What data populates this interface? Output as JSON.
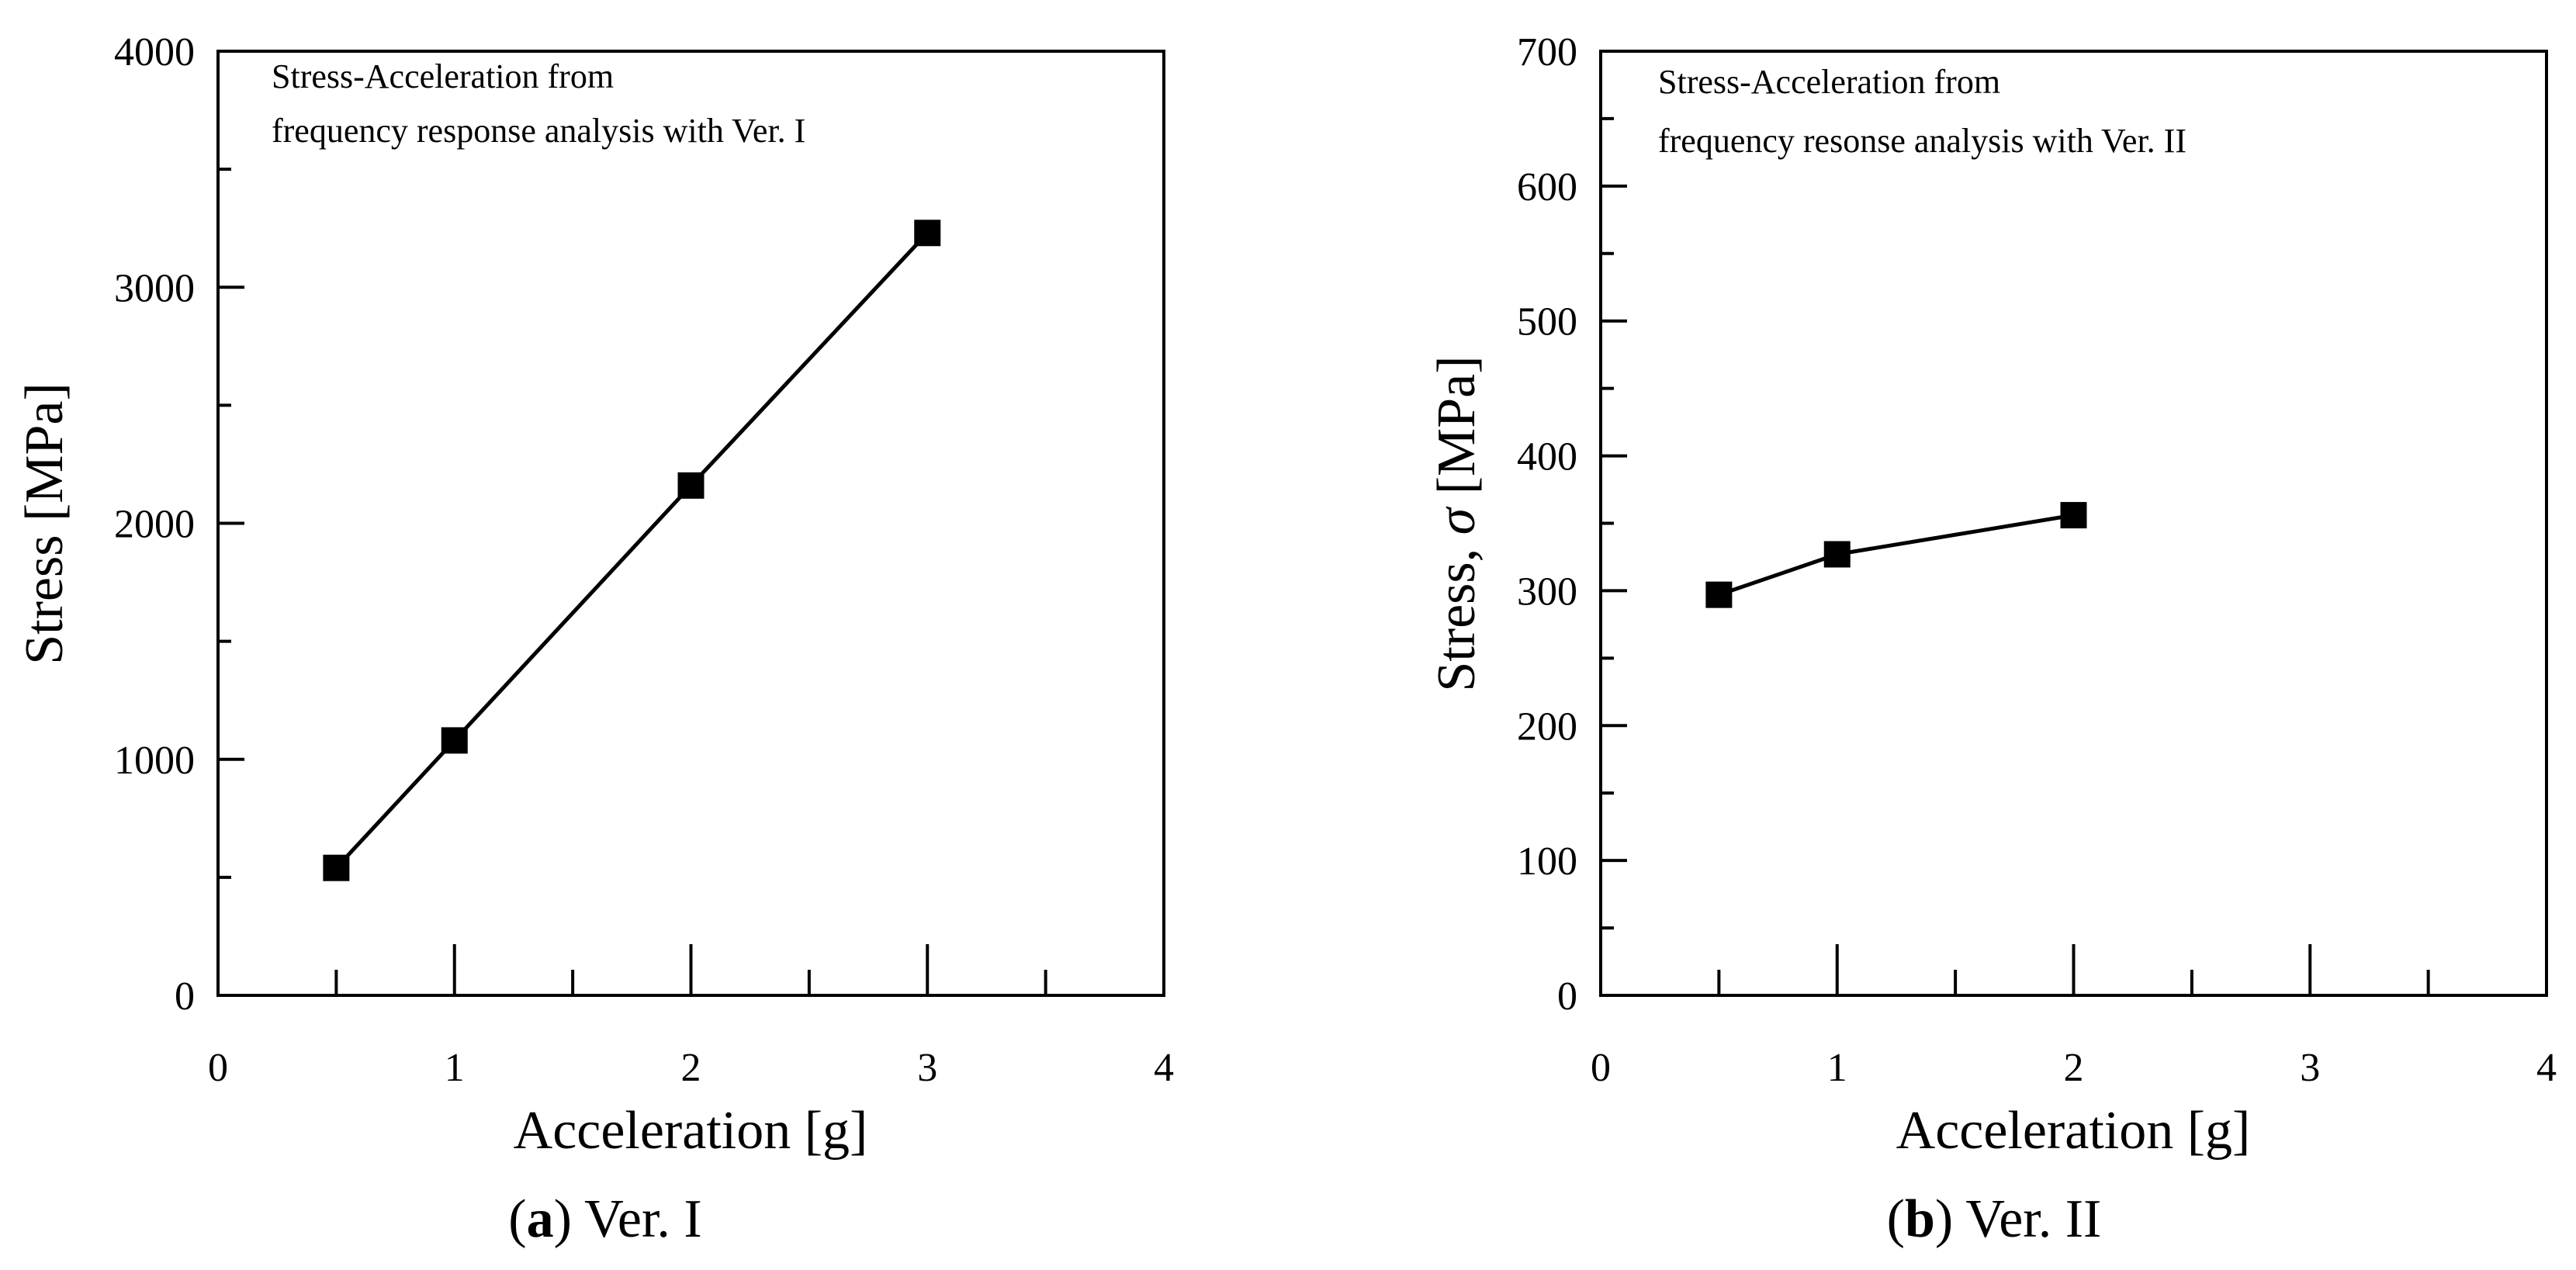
{
  "chart_data": [
    {
      "type": "line",
      "panel": "a",
      "caption_letter": "a",
      "caption_text": " Ver. I",
      "x": [
        0.5,
        1,
        2,
        3
      ],
      "series": [
        {
          "name": "Stress",
          "values": [
            540,
            1080,
            2160,
            3230
          ]
        }
      ],
      "xlim": [
        0,
        4
      ],
      "ylim": [
        0,
        4000
      ],
      "xticks": [
        0,
        1,
        2,
        3,
        4
      ],
      "xminor": [
        0.5,
        1.5,
        2.5,
        3.5
      ],
      "yticks": [
        0,
        1000,
        2000,
        3000,
        4000
      ],
      "yminor": [
        500,
        1500,
        2500,
        3500
      ],
      "xlabel": "Acceleration [g]",
      "ylabel": "Stress [MPa]",
      "ylabel_symbol": "",
      "ylabel_suffix": "",
      "annotation_line1": "Stress-Acceleration from",
      "annotation_line2": "frequency response analysis with Ver. I",
      "grid": false,
      "marker": "square",
      "color": "#000000"
    },
    {
      "type": "line",
      "panel": "b",
      "caption_letter": "b",
      "caption_text": " Ver. II",
      "x": [
        0.5,
        1,
        2
      ],
      "series": [
        {
          "name": "Stress",
          "values": [
            297,
            327,
            356
          ]
        }
      ],
      "xlim": [
        0,
        4
      ],
      "ylim": [
        0,
        700
      ],
      "xticks": [
        0,
        1,
        2,
        3,
        4
      ],
      "xminor": [
        0.5,
        1.5,
        2.5,
        3.5
      ],
      "yticks": [
        0,
        100,
        200,
        300,
        400,
        500,
        600,
        700
      ],
      "yminor": [
        50,
        150,
        250,
        350,
        450,
        550,
        650
      ],
      "xlabel": "Acceleration [g]",
      "ylabel": "Stress, ",
      "ylabel_symbol": "σ",
      "ylabel_suffix": " [MPa]",
      "annotation_line1": "Stress-Acceleration from",
      "annotation_line2": "frequency resonse analysis with Ver. II",
      "grid": false,
      "marker": "square",
      "color": "#000000"
    }
  ]
}
